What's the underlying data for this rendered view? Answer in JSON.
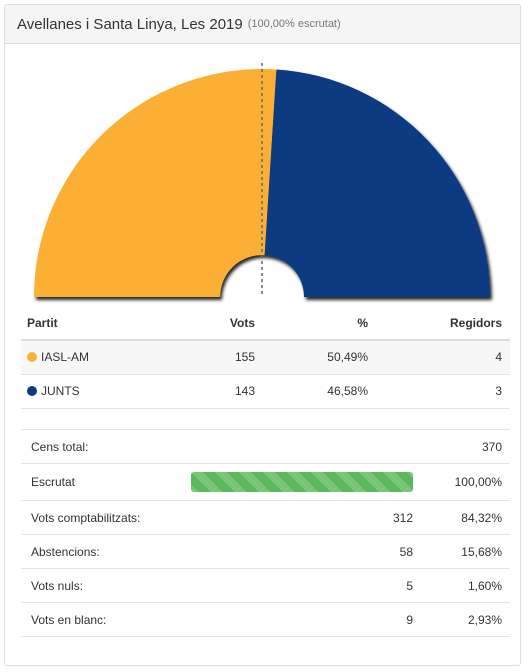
{
  "header": {
    "title": "Avellanes i Santa Linya, Les 2019",
    "subtitle": "(100,00% escrutat)"
  },
  "chart_data": {
    "type": "pie",
    "shape": "semicircle-parliament",
    "majority_line": true,
    "slices": [
      {
        "name": "IASL-AM",
        "percent": 50.49,
        "color": "#fbb034"
      },
      {
        "name": "JUNTS",
        "percent": 46.58,
        "color": "#0d3a82"
      }
    ]
  },
  "table": {
    "headers": {
      "party": "Partit",
      "votes": "Vots",
      "pct": "%",
      "seats": "Regidors"
    },
    "rows": [
      {
        "party": "IASL-AM",
        "color": "#fbb034",
        "votes": "155",
        "pct": "50,49%",
        "seats": "4"
      },
      {
        "party": "JUNTS",
        "color": "#0d3a82",
        "votes": "143",
        "pct": "46,58%",
        "seats": "3"
      }
    ]
  },
  "stats": {
    "census_label": "Cens total:",
    "census_value": "370",
    "scrutiny_label": "Escrutat",
    "scrutiny_pct": "100,00%",
    "scrutiny_fraction": 1.0,
    "counted_label": "Vots comptabilitzats:",
    "counted_value": "312",
    "counted_pct": "84,32%",
    "abst_label": "Abstencions:",
    "abst_value": "58",
    "abst_pct": "15,68%",
    "null_label": "Vots nuls:",
    "null_value": "5",
    "null_pct": "1,60%",
    "blank_label": "Vots en blanc:",
    "blank_value": "9",
    "blank_pct": "2,93%"
  }
}
